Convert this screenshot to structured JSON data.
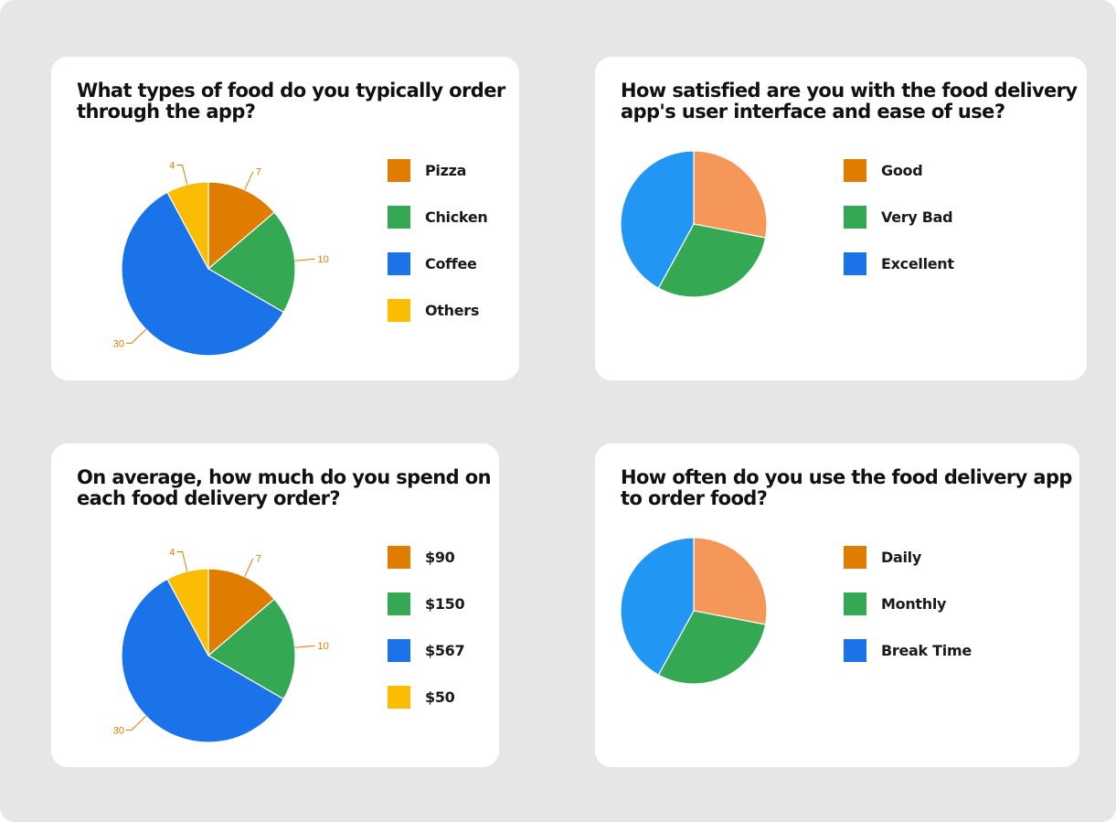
{
  "cards": [
    {
      "title_line1": "What types of food do you typically order",
      "title_line2": "through the app?",
      "legend": [
        {
          "label": "Pizza",
          "color": "#e07c00"
        },
        {
          "label": "Chicken",
          "color": "#34a853"
        },
        {
          "label": "Coffee",
          "color": "#1a73e8"
        },
        {
          "label": "Others",
          "color": "#fbbc04"
        }
      ]
    },
    {
      "title_line1": "How satisfied are you with the food delivery",
      "title_line2": "app's user interface and ease of use?",
      "legend": [
        {
          "label": "Good",
          "color": "#e07c00"
        },
        {
          "label": "Very Bad",
          "color": "#34a853"
        },
        {
          "label": "Excellent",
          "color": "#1a73e8"
        }
      ]
    },
    {
      "title_line1": "On average, how much do you spend on",
      "title_line2": "each food delivery order?",
      "legend": [
        {
          "label": "$90",
          "color": "#e07c00"
        },
        {
          "label": "$150",
          "color": "#34a853"
        },
        {
          "label": "$567",
          "color": "#1a73e8"
        },
        {
          "label": "$50",
          "color": "#fbbc04"
        }
      ]
    },
    {
      "title_line1": "How often do you use the food delivery app",
      "title_line2": "to order food?",
      "legend": [
        {
          "label": "Daily",
          "color": "#e07c00"
        },
        {
          "label": "Monthly",
          "color": "#34a853"
        },
        {
          "label": "Break Time",
          "color": "#1a73e8"
        }
      ]
    }
  ],
  "label_color": "#e07c00",
  "chart_data": [
    {
      "type": "pie",
      "title": "What types of food do you typically order through the app?",
      "labels": [
        "Pizza",
        "Chicken",
        "Coffee",
        "Others"
      ],
      "values": [
        7,
        10,
        30,
        4
      ],
      "colors": [
        "#e07c00",
        "#34a853",
        "#1a73e8",
        "#fbbc04"
      ],
      "data_labels": true,
      "legend": "right"
    },
    {
      "type": "pie",
      "title": "How satisfied are you with the food delivery app's user interface and ease of use?",
      "labels": [
        "Good",
        "Very Bad",
        "Excellent"
      ],
      "values": [
        28,
        30,
        42
      ],
      "colors": [
        "#f59758",
        "#34a853",
        "#2196f3"
      ],
      "data_labels": false,
      "legend": "right"
    },
    {
      "type": "pie",
      "title": "On average, how much do you spend on each food delivery order?",
      "labels": [
        "$90",
        "$150",
        "$567",
        "$50"
      ],
      "values": [
        7,
        10,
        30,
        4
      ],
      "colors": [
        "#e07c00",
        "#34a853",
        "#1a73e8",
        "#fbbc04"
      ],
      "data_labels": true,
      "legend": "right"
    },
    {
      "type": "pie",
      "title": "How often do you use the food delivery app to order food?",
      "labels": [
        "Daily",
        "Monthly",
        "Break Time"
      ],
      "values": [
        28,
        30,
        42
      ],
      "colors": [
        "#f59758",
        "#34a853",
        "#2196f3"
      ],
      "data_labels": false,
      "legend": "right"
    }
  ]
}
